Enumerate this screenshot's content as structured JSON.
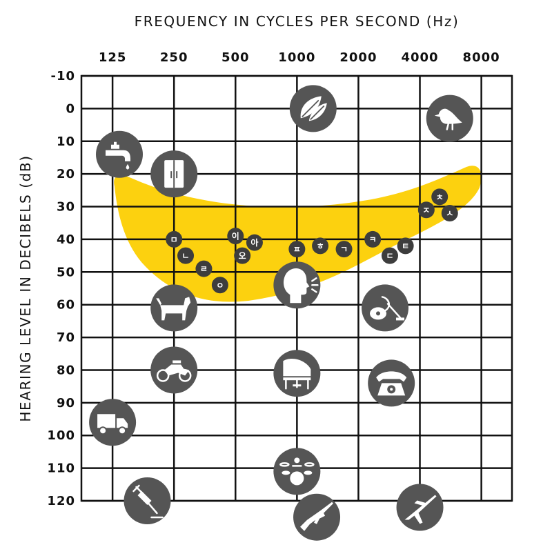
{
  "chart_data": {
    "type": "scatter",
    "title": "",
    "xlabel": "FREQUENCY IN CYCLES PER SECOND (Hz)",
    "ylabel": "HEARING LEVEL IN DECIBELS (dB)",
    "x_ticks": [
      "125",
      "250",
      "500",
      "1000",
      "2000",
      "4000",
      "8000"
    ],
    "y_ticks": [
      "-10",
      "0",
      "10",
      "20",
      "30",
      "40",
      "50",
      "60",
      "70",
      "80",
      "90",
      "100",
      "110",
      "120"
    ],
    "x_scale": "log",
    "xlim": [
      88,
      11300
    ],
    "ylim": [
      -10,
      120
    ],
    "grid": true,
    "speech_banana_color": "#fcd10f",
    "phonemes": [
      {
        "label": "ㅁ",
        "x": 250,
        "y": 40
      },
      {
        "label": "ㄴ",
        "x": 285,
        "y": 45
      },
      {
        "label": "ㄹ",
        "x": 350,
        "y": 49
      },
      {
        "label": "ㅇ",
        "x": 420,
        "y": 54
      },
      {
        "label": "이",
        "x": 500,
        "y": 39
      },
      {
        "label": "오",
        "x": 540,
        "y": 45
      },
      {
        "label": "아",
        "x": 620,
        "y": 41
      },
      {
        "label": "ㅍ",
        "x": 1000,
        "y": 43
      },
      {
        "label": "ㅎ",
        "x": 1300,
        "y": 42
      },
      {
        "label": "ㄱ",
        "x": 1700,
        "y": 43
      },
      {
        "label": "ㅋ",
        "x": 2350,
        "y": 40
      },
      {
        "label": "ㄷ",
        "x": 2850,
        "y": 45
      },
      {
        "label": "ㅌ",
        "x": 3400,
        "y": 42
      },
      {
        "label": "ㅊ",
        "x": 5000,
        "y": 27
      },
      {
        "label": "ㅈ",
        "x": 4300,
        "y": 31
      },
      {
        "label": "ㅅ",
        "x": 5600,
        "y": 32
      }
    ],
    "sounds": [
      {
        "icon": "leaves-icon",
        "x": 1200,
        "y": 0
      },
      {
        "icon": "bird-icon",
        "x": 5600,
        "y": 3
      },
      {
        "icon": "faucet-icon",
        "x": 135,
        "y": 14
      },
      {
        "icon": "refrigerator-icon",
        "x": 250,
        "y": 20
      },
      {
        "icon": "speaking-person-icon",
        "x": 1000,
        "y": 54
      },
      {
        "icon": "dog-icon",
        "x": 250,
        "y": 61
      },
      {
        "icon": "vacuum-cleaner-icon",
        "x": 2700,
        "y": 61
      },
      {
        "icon": "motorcycle-icon",
        "x": 250,
        "y": 80
      },
      {
        "icon": "piano-icon",
        "x": 1000,
        "y": 81
      },
      {
        "icon": "telephone-icon",
        "x": 2900,
        "y": 84
      },
      {
        "icon": "truck-icon",
        "x": 125,
        "y": 96
      },
      {
        "icon": "drum-kit-icon",
        "x": 1000,
        "y": 111
      },
      {
        "icon": "jackhammer-icon",
        "x": 185,
        "y": 120
      },
      {
        "icon": "rifle-icon",
        "x": 1250,
        "y": 125
      },
      {
        "icon": "airplane-icon",
        "x": 4000,
        "y": 122
      }
    ]
  }
}
